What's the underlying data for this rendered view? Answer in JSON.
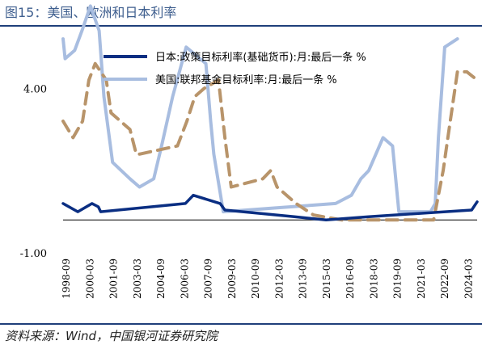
{
  "title": "图15：美国、欧洲和日本利率",
  "source": "资料来源：Wind，中国银河证券研究院",
  "chart_data": {
    "type": "line",
    "ylim": [
      -1,
      5.7
    ],
    "yticks": [
      {
        "value": 4,
        "label": "4.00"
      },
      {
        "value": -1,
        "label": "-1.00"
      }
    ],
    "x_tick_labels": [
      "1998-09",
      "2000-03",
      "2001-09",
      "2003-03",
      "2004-09",
      "2006-03",
      "2007-09",
      "2009-03",
      "2010-09",
      "2012-03",
      "2013-09",
      "2015-03",
      "2016-09",
      "2018-03",
      "2019-09",
      "2021-03",
      "2022-09",
      "2024-03"
    ],
    "xlim": [
      1998.67,
      2024.85
    ],
    "grid": false,
    "legend_position": "top",
    "series": [
      {
        "name": "日本:政策目标利率(基础货币):月:最后一条 %",
        "color": "#0a2e82",
        "dash": "solid",
        "points": [
          [
            1998.67,
            0.5
          ],
          [
            1999.6,
            0.25
          ],
          [
            2000.5,
            0.5
          ],
          [
            2000.9,
            0.4
          ],
          [
            2001.05,
            0.25
          ],
          [
            2006.4,
            0.5
          ],
          [
            2006.9,
            0.75
          ],
          [
            2008.6,
            0.5
          ],
          [
            2008.9,
            0.3
          ],
          [
            2013.3,
            0.1
          ],
          [
            2015.3,
            0.0
          ],
          [
            2018.0,
            0.1
          ],
          [
            2024.5,
            0.3
          ],
          [
            2024.85,
            0.55
          ]
        ]
      },
      {
        "name": "美国:联邦基金目标利率:月:最后一条 %",
        "color": "#a8bde0",
        "dash": "solid",
        "points": [
          [
            1998.67,
            5.5
          ],
          [
            1998.8,
            4.9
          ],
          [
            1999.4,
            5.15
          ],
          [
            1999.9,
            5.8
          ],
          [
            2000.4,
            6.5
          ],
          [
            2000.95,
            5.75
          ],
          [
            2001.25,
            3.75
          ],
          [
            2001.8,
            1.75
          ],
          [
            2002.9,
            1.25
          ],
          [
            2003.5,
            1.0
          ],
          [
            2004.4,
            1.25
          ],
          [
            2004.9,
            2.25
          ],
          [
            2005.6,
            3.75
          ],
          [
            2006.45,
            5.25
          ],
          [
            2007.7,
            4.75
          ],
          [
            2008.0,
            3.0
          ],
          [
            2008.2,
            2.0
          ],
          [
            2008.8,
            0.25
          ],
          [
            2015.9,
            0.5
          ],
          [
            2016.9,
            0.75
          ],
          [
            2017.5,
            1.25
          ],
          [
            2018.0,
            1.5
          ],
          [
            2018.9,
            2.5
          ],
          [
            2019.5,
            2.25
          ],
          [
            2019.9,
            0.25
          ],
          [
            2021.9,
            0.25
          ],
          [
            2022.2,
            0.5
          ],
          [
            2022.4,
            2.5
          ],
          [
            2022.8,
            5.25
          ],
          [
            2023.6,
            5.5
          ]
        ]
      },
      {
        "name": "欧洲",
        "color": "#b8946a",
        "dash": "dashed",
        "points": [
          [
            1998.67,
            3.0
          ],
          [
            1999.3,
            2.5
          ],
          [
            1999.9,
            3.0
          ],
          [
            2000.3,
            4.25
          ],
          [
            2000.7,
            4.75
          ],
          [
            2001.4,
            4.25
          ],
          [
            2001.7,
            3.25
          ],
          [
            2002.9,
            2.75
          ],
          [
            2003.3,
            2.0
          ],
          [
            2003.5,
            2.0
          ],
          [
            2005.9,
            2.25
          ],
          [
            2006.5,
            3.0
          ],
          [
            2007.0,
            3.75
          ],
          [
            2007.6,
            4.0
          ],
          [
            2008.5,
            4.25
          ],
          [
            2008.9,
            2.5
          ],
          [
            2009.3,
            1.0
          ],
          [
            2011.3,
            1.25
          ],
          [
            2011.8,
            1.5
          ],
          [
            2012.2,
            1.0
          ],
          [
            2013.4,
            0.5
          ],
          [
            2014.5,
            0.15
          ],
          [
            2016.3,
            0.0
          ],
          [
            2022.1,
            0.0
          ],
          [
            2022.7,
            1.5
          ],
          [
            2023.0,
            2.5
          ],
          [
            2023.6,
            4.5
          ],
          [
            2024.2,
            4.5
          ],
          [
            2024.85,
            4.25
          ]
        ]
      }
    ]
  }
}
